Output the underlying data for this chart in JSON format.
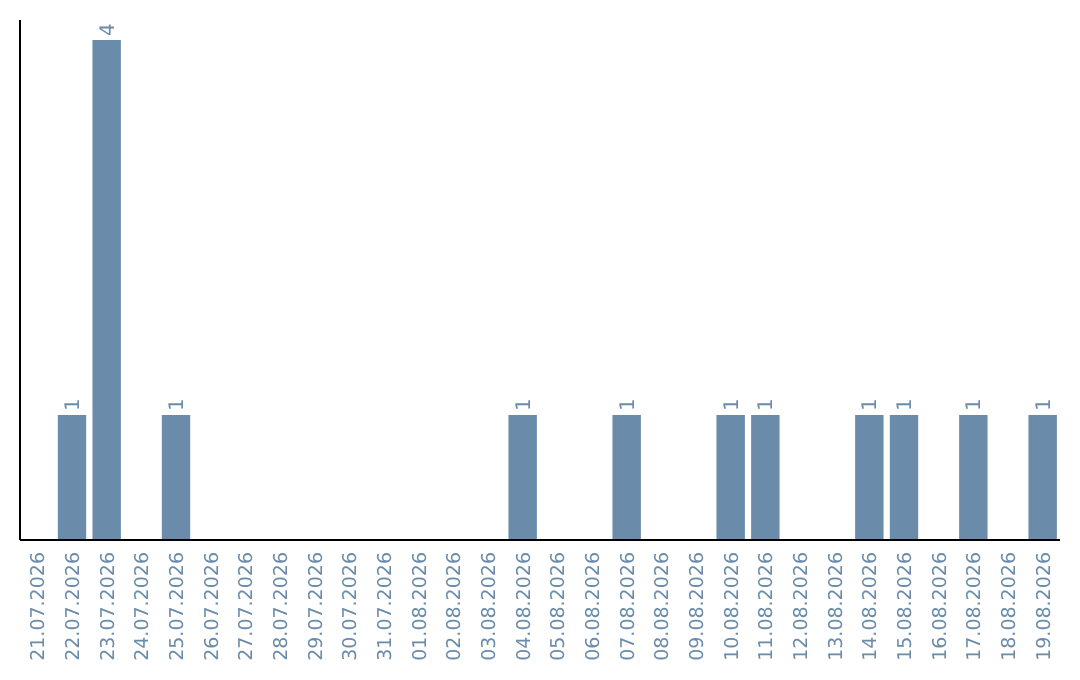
{
  "chart_data": {
    "type": "bar",
    "categories": [
      "21.07.2026",
      "22.07.2026",
      "23.07.2026",
      "24.07.2026",
      "25.07.2026",
      "26.07.2026",
      "27.07.2026",
      "28.07.2026",
      "29.07.2026",
      "30.07.2026",
      "31.07.2026",
      "01.08.2026",
      "02.08.2026",
      "03.08.2026",
      "04.08.2026",
      "05.08.2026",
      "06.08.2026",
      "07.08.2026",
      "08.08.2026",
      "09.08.2026",
      "10.08.2026",
      "11.08.2026",
      "12.08.2026",
      "13.08.2026",
      "14.08.2026",
      "15.08.2026",
      "16.08.2026",
      "17.08.2026",
      "18.08.2026",
      "19.08.2026"
    ],
    "values": [
      0,
      1,
      4,
      0,
      1,
      0,
      0,
      0,
      0,
      0,
      0,
      0,
      0,
      0,
      1,
      0,
      0,
      1,
      0,
      0,
      1,
      1,
      0,
      0,
      1,
      1,
      0,
      1,
      0,
      1
    ],
    "value_labels": [
      null,
      "1",
      "4",
      null,
      "1",
      null,
      null,
      null,
      null,
      null,
      null,
      null,
      null,
      null,
      "1",
      null,
      null,
      "1",
      null,
      null,
      "1",
      "1",
      null,
      null,
      "1",
      "1",
      null,
      "1",
      null,
      "1"
    ],
    "color": "#6a8caa"
  }
}
